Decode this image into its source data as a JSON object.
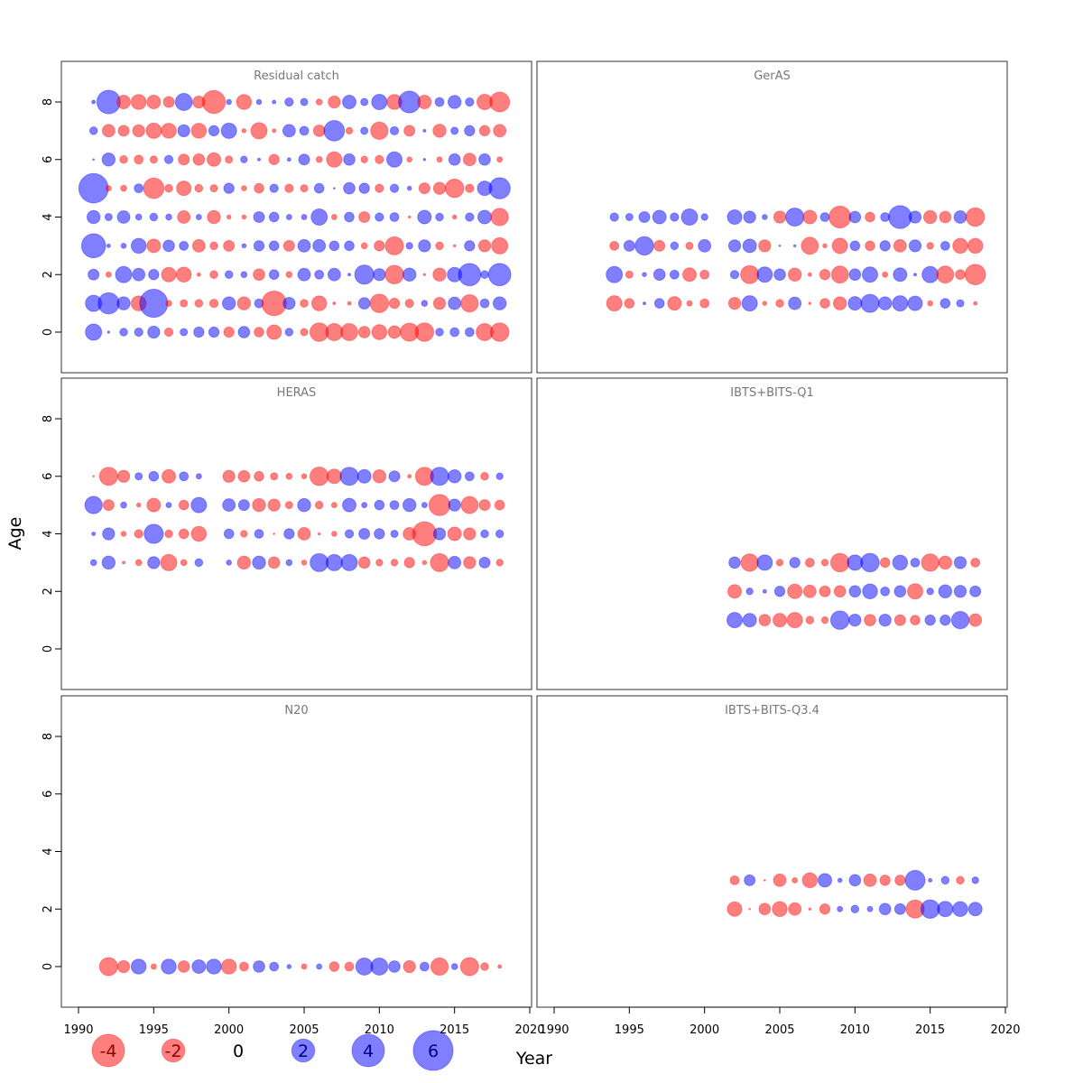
{
  "chart_data": {
    "type": "scatter",
    "subtype": "bubble",
    "xlabel": "Year",
    "ylabel": "Age",
    "xlim": [
      1990,
      2020
    ],
    "ylim": [
      -1.4,
      9.4
    ],
    "xticks": [
      1990,
      1995,
      2000,
      2005,
      2010,
      2015,
      2020
    ],
    "yticks": [
      0,
      2,
      4,
      6,
      8
    ],
    "colors": {
      "positive": "#0000ff",
      "negative": "#ff0000"
    },
    "legend": {
      "placement": "bottom-left",
      "values": [
        -4,
        -2,
        0,
        2,
        4,
        6
      ]
    },
    "panels": [
      {
        "title": "Residual catch",
        "years": [
          1991,
          1992,
          1993,
          1994,
          1995,
          1996,
          1997,
          1998,
          1999,
          2000,
          2001,
          2002,
          2003,
          2004,
          2005,
          2006,
          2007,
          2008,
          2009,
          2010,
          2011,
          2012,
          2013,
          2014,
          2015,
          2016,
          2017,
          2018
        ],
        "rows": [
          {
            "age": 8,
            "values": [
              0.05,
              2.1,
              -0.7,
              -0.85,
              -0.7,
              -0.45,
              1.1,
              -0.55,
              -2,
              0.1,
              -0.85,
              0.1,
              0.05,
              0.27,
              0.2,
              -0.14,
              -0.55,
              0.7,
              0.2,
              0.9,
              -0.85,
              1.8,
              -0.7,
              0.3,
              0.65,
              0.27,
              -0.9,
              -1.5
            ]
          },
          {
            "age": 7,
            "values": [
              0.23,
              -0.6,
              -0.45,
              -0.55,
              -0.9,
              -0.85,
              0.55,
              -0.85,
              0.4,
              0.9,
              -0.07,
              -1,
              -0.05,
              0.6,
              0.3,
              -0.5,
              1.6,
              -0.17,
              0.2,
              -1.15,
              0.27,
              -0.45,
              0.03,
              -0.65,
              0.2,
              0.4,
              -0.4,
              -0.6
            ]
          },
          {
            "age": 6,
            "values": [
              0.01,
              0.65,
              -0.23,
              -0.3,
              -0.2,
              0.27,
              -0.45,
              -0.5,
              -0.7,
              -0.2,
              0.17,
              0.03,
              -0.4,
              0.05,
              0.45,
              -0.14,
              -0.9,
              0.5,
              -0.17,
              -0.27,
              0.9,
              -0.1,
              0.02,
              -0.11,
              0.5,
              -0.6,
              0.5,
              -0.11
            ]
          },
          {
            "age": 5,
            "values": [
              3.3,
              -0.11,
              -0.14,
              0.3,
              -1.6,
              -0.23,
              -0.8,
              -0.23,
              -0.2,
              0.4,
              -0.1,
              -0.35,
              0.27,
              -0.27,
              -0.2,
              0.35,
              0.01,
              0.5,
              0.4,
              -0.27,
              0.27,
              0.07,
              -0.45,
              -0.55,
              -1.3,
              -0.27,
              0.8,
              1.7
            ]
          },
          {
            "age": 4,
            "values": [
              0.65,
              0.2,
              0.6,
              0.14,
              0.23,
              0.14,
              -0.6,
              0.11,
              -0.65,
              -0.07,
              -0.07,
              0.45,
              0.35,
              0.11,
              0.11,
              1,
              -0.11,
              0.35,
              -0.45,
              0.27,
              0.3,
              -0.02,
              0.7,
              0.23,
              -0.07,
              0.27,
              0.7,
              -1.15
            ]
          },
          {
            "age": 3,
            "values": [
              2.2,
              0.05,
              0.1,
              0.85,
              -0.7,
              0.5,
              0.3,
              -0.6,
              -0.23,
              -0.45,
              0.07,
              0.4,
              0.35,
              -0.45,
              0.6,
              0.6,
              0.35,
              0.35,
              -0.14,
              -0.4,
              -1.25,
              0.17,
              0.55,
              -0.23,
              -0.02,
              0.4,
              -0.55,
              -1
            ]
          },
          {
            "age": 2,
            "values": [
              0.45,
              -0.11,
              1,
              0.6,
              0.4,
              -0.8,
              -0.85,
              -0.05,
              -0.23,
              0.23,
              0.14,
              -0.5,
              0.35,
              -0.14,
              0.6,
              0.3,
              0.6,
              0.03,
              1.4,
              0.55,
              -1.3,
              0.65,
              -0.02,
              -0.65,
              0.8,
              1.9,
              0.23,
              1.9
            ]
          },
          {
            "age": 1,
            "values": [
              1,
              1.7,
              0.65,
              -0.85,
              3,
              -0.14,
              -0.2,
              -0.23,
              -0.27,
              0.65,
              -0.65,
              0.3,
              -2.3,
              0.55,
              -0.23,
              -0.85,
              -0.03,
              -0.05,
              0.5,
              -1.3,
              -0.4,
              -0.27,
              0.14,
              -0.55,
              0.6,
              -1.15,
              0.3,
              0.65
            ]
          },
          {
            "age": 0,
            "values": [
              1,
              0.02,
              0.23,
              0.27,
              0.55,
              -0.27,
              0.2,
              0.4,
              0.4,
              -0.4,
              0.5,
              -0.35,
              -0.8,
              0.23,
              -0.2,
              -1.3,
              -1.1,
              -1.1,
              -0.5,
              -0.85,
              -0.6,
              -1.25,
              -1.3,
              0.23,
              0.3,
              0.3,
              -1.1,
              -1.3
            ]
          }
        ]
      },
      {
        "title": "GerAS",
        "years": [
          1994,
          1995,
          1996,
          1997,
          1998,
          1999,
          2000,
          2002,
          2003,
          2004,
          2005,
          2006,
          2007,
          2008,
          2009,
          2010,
          2011,
          2012,
          2013,
          2014,
          2015,
          2016,
          2017,
          2018
        ],
        "rows": [
          {
            "age": 4,
            "values": [
              0.27,
              0.2,
              0.45,
              0.7,
              0.27,
              1,
              0.17,
              0.8,
              0.55,
              0.1,
              -0.55,
              1.25,
              -0.7,
              0.3,
              -1.8,
              0.5,
              -0.35,
              0.3,
              2,
              0.55,
              -0.65,
              -0.5,
              0.6,
              -1.3
            ]
          },
          {
            "age": 3,
            "values": [
              -0.3,
              0.45,
              1.3,
              -0.45,
              0.23,
              -0.2,
              0.6,
              0.55,
              0.7,
              -0.55,
              0.01,
              0.02,
              -1.1,
              -0.07,
              -0.9,
              0.35,
              -0.35,
              0.4,
              -0.6,
              0.55,
              -0.17,
              0.3,
              -0.85,
              -0.85
            ]
          },
          {
            "age": 2,
            "values": [
              1,
              -0.2,
              0.07,
              0.5,
              0.3,
              -0.7,
              -0.3,
              0.27,
              -1.25,
              0.9,
              0.5,
              -0.65,
              -0.05,
              -0.4,
              -1.1,
              0.5,
              0.9,
              -0.11,
              0.7,
              0.03,
              1,
              -1.1,
              -0.35,
              -1.6
            ]
          },
          {
            "age": 1,
            "values": [
              -0.9,
              -0.35,
              0.03,
              0.35,
              -0.7,
              -0.11,
              -0.3,
              -0.55,
              0.9,
              -0.07,
              -0.23,
              0.6,
              -0.02,
              -0.35,
              -0.65,
              0.7,
              1.25,
              0.65,
              0.9,
              0.8,
              -0.1,
              0.35,
              0.2,
              -0.05
            ]
          }
        ]
      },
      {
        "title": "HERAS",
        "years": [
          1991,
          1992,
          1993,
          1994,
          1995,
          1996,
          1997,
          1998,
          2000,
          2001,
          2002,
          2003,
          2004,
          2005,
          2006,
          2007,
          2008,
          2009,
          2010,
          2011,
          2012,
          2013,
          2014,
          2015,
          2016,
          2017,
          2018
        ],
        "rows": [
          {
            "age": 6,
            "values": [
              -0.01,
              -1.25,
              -0.55,
              0.2,
              0.35,
              -0.7,
              0.3,
              0.11,
              -0.55,
              -0.5,
              -0.35,
              -0.2,
              -0.14,
              -0.1,
              -1.3,
              -0.8,
              1.25,
              0.7,
              -0.65,
              0.45,
              -0.05,
              -1.25,
              1.25,
              0.65,
              0.3,
              -0.23,
              0.17
            ]
          },
          {
            "age": 5,
            "values": [
              1.15,
              -0.45,
              0.14,
              -0.07,
              -0.7,
              0.11,
              -0.35,
              0.9,
              0.6,
              0.45,
              -0.65,
              -0.55,
              -0.2,
              0.65,
              -0.23,
              -0.11,
              0.7,
              0.11,
              0.35,
              0.3,
              0.65,
              0.11,
              -1.7,
              0.55,
              -1.1,
              -0.45,
              -0.35
            ]
          },
          {
            "age": 4,
            "values": [
              0.05,
              0.55,
              -0.1,
              -0.27,
              1.4,
              -0.23,
              -0.35,
              -0.85,
              0.35,
              -0.17,
              0.3,
              -0.01,
              0.4,
              -0.6,
              -0.02,
              -0.1,
              0.27,
              0.45,
              0.4,
              0.2,
              -0.6,
              -2.2,
              0.55,
              -0.7,
              -0.55,
              0.23,
              0.23
            ]
          },
          {
            "age": 3,
            "values": [
              0.14,
              0.65,
              -0.03,
              -0.14,
              0.55,
              -1,
              -0.14,
              0.23,
              0.1,
              -0.65,
              0.65,
              -0.5,
              0.14,
              -0.1,
              1.25,
              1,
              1,
              -0.5,
              -0.17,
              -0.17,
              -0.4,
              -0.07,
              -1.25,
              0.6,
              -0.55,
              0.45,
              -0.17
            ]
          }
        ]
      },
      {
        "title": "IBTS+BITS-Q1",
        "years": [
          2002,
          2003,
          2004,
          2005,
          2006,
          2007,
          2008,
          2009,
          2010,
          2011,
          2012,
          2013,
          2014,
          2015,
          2016,
          2017,
          2018
        ],
        "rows": [
          {
            "age": 3,
            "values": [
              0.5,
              -1.15,
              0.9,
              -0.17,
              0.4,
              -0.3,
              -0.17,
              -1.3,
              0.9,
              1.3,
              -0.35,
              0.85,
              0.3,
              -1.15,
              -0.65,
              0.55,
              -0.3
            ]
          },
          {
            "age": 2,
            "values": [
              -0.7,
              0.17,
              0.05,
              0.4,
              -0.8,
              -0.6,
              -0.45,
              -0.5,
              0.5,
              0.85,
              0.3,
              0.5,
              -0.9,
              0.17,
              0.65,
              0.55,
              0.45
            ]
          },
          {
            "age": 1,
            "values": [
              0.9,
              0.7,
              -0.5,
              -0.7,
              -0.9,
              -0.23,
              -0.17,
              1.3,
              0.55,
              -0.5,
              0.55,
              -0.45,
              -0.35,
              0.4,
              0.4,
              1.15,
              -0.6
            ]
          }
        ]
      },
      {
        "title": "N20",
        "years": [
          1992,
          1993,
          1994,
          1995,
          1996,
          1997,
          1998,
          1999,
          2000,
          2001,
          2002,
          2003,
          2004,
          2005,
          2006,
          2007,
          2008,
          2009,
          2010,
          2011,
          2012,
          2013,
          2014,
          2015,
          2016,
          2017,
          2018
        ],
        "rows": [
          {
            "age": 0,
            "values": [
              -1.25,
              -0.55,
              0.85,
              -0.11,
              0.85,
              -0.5,
              0.7,
              0.85,
              -0.85,
              -0.3,
              0.5,
              0.3,
              0.07,
              -0.11,
              0.11,
              -0.35,
              -0.3,
              1.1,
              1.1,
              0.5,
              -0.55,
              0.3,
              -1.15,
              0.14,
              -1.25,
              -0.23,
              -0.05
            ]
          }
        ]
      },
      {
        "title": "IBTS+BITS-Q3.4",
        "years": [
          2002,
          2003,
          2004,
          2005,
          2006,
          2007,
          2008,
          2009,
          2010,
          2011,
          2012,
          2013,
          2014,
          2015,
          2016,
          2017,
          2018
        ],
        "rows": [
          {
            "age": 3,
            "values": [
              -0.3,
              0.45,
              -0.01,
              -0.6,
              -0.11,
              -0.85,
              0.7,
              0.07,
              0.5,
              -0.6,
              -0.4,
              -0.4,
              1.5,
              0.05,
              0.23,
              -0.23,
              0.17
            ]
          },
          {
            "age": 2,
            "values": [
              -0.8,
              -0.01,
              -0.5,
              -0.85,
              -0.6,
              -0.02,
              -0.4,
              0.11,
              0.23,
              0.11,
              0.5,
              0.45,
              -1.25,
              1.3,
              0.9,
              0.85,
              0.7
            ]
          }
        ]
      }
    ]
  }
}
